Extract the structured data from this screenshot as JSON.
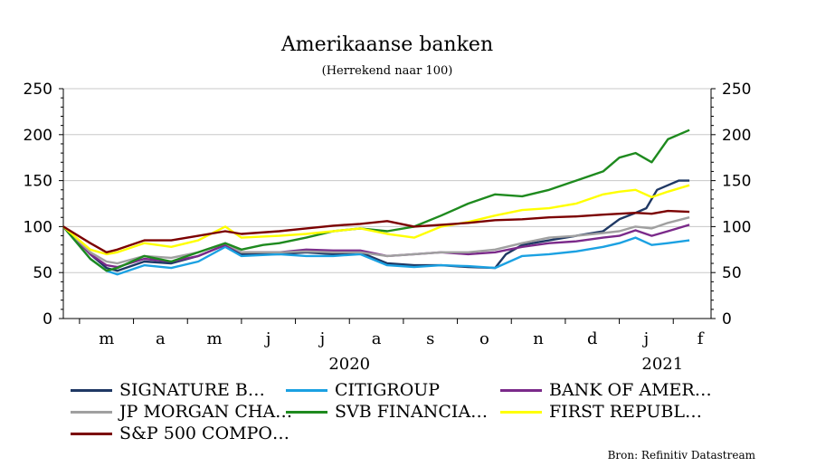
{
  "chart_data": {
    "type": "line",
    "title": "Amerikaanse banken",
    "subtitle": "(Herrekend naar 100)",
    "ylim": [
      0,
      250
    ],
    "yticks": [
      0,
      50,
      100,
      150,
      200,
      250
    ],
    "ytick_labels": [
      "0",
      "50",
      "100",
      "150",
      "200",
      "250"
    ],
    "xlim": [
      0,
      12
    ],
    "months": [
      "m",
      "a",
      "m",
      "j",
      "j",
      "a",
      "s",
      "o",
      "n",
      "d",
      "j",
      "f"
    ],
    "years": [
      "2020",
      "2021"
    ],
    "grid": true,
    "legend_position": "bottom",
    "source": "Bron: Refinitiv Datastream",
    "series": [
      {
        "name": "SIGNATURE B…",
        "color": "#1f3864",
        "x": [
          0,
          0.5,
          0.8,
          1.0,
          1.5,
          2.0,
          2.5,
          3.0,
          3.3,
          4.0,
          4.5,
          5.0,
          5.5,
          6.0,
          6.5,
          7.0,
          7.5,
          8.0,
          8.2,
          8.5,
          9.0,
          9.5,
          10.0,
          10.3,
          10.6,
          10.8,
          11.0,
          11.2,
          11.4,
          11.6
        ],
        "y": [
          100,
          70,
          55,
          52,
          62,
          60,
          68,
          80,
          70,
          70,
          72,
          70,
          72,
          60,
          58,
          58,
          56,
          55,
          70,
          80,
          85,
          90,
          95,
          108,
          115,
          120,
          140,
          145,
          150,
          150
        ]
      },
      {
        "name": "CITIGROUP",
        "color": "#1ba1e2",
        "x": [
          0,
          0.5,
          0.8,
          1.0,
          1.5,
          2.0,
          2.5,
          3.0,
          3.3,
          4.0,
          4.5,
          5.0,
          5.5,
          6.0,
          6.5,
          7.0,
          7.5,
          8.0,
          8.5,
          9.0,
          9.5,
          10.0,
          10.3,
          10.6,
          10.9,
          11.2,
          11.6
        ],
        "y": [
          100,
          65,
          52,
          48,
          58,
          55,
          62,
          78,
          68,
          70,
          68,
          68,
          70,
          58,
          56,
          58,
          57,
          55,
          68,
          70,
          73,
          78,
          82,
          88,
          80,
          82,
          85
        ]
      },
      {
        "name": "BANK OF AMER…",
        "color": "#7b2a8a",
        "x": [
          0,
          0.5,
          0.8,
          1.0,
          1.5,
          2.0,
          2.5,
          3.0,
          3.3,
          4.0,
          4.5,
          5.0,
          5.5,
          6.0,
          6.5,
          7.0,
          7.5,
          8.0,
          8.5,
          9.0,
          9.5,
          10.0,
          10.3,
          10.6,
          10.9,
          11.2,
          11.6
        ],
        "y": [
          100,
          70,
          58,
          56,
          65,
          62,
          68,
          80,
          72,
          72,
          75,
          74,
          74,
          68,
          70,
          72,
          70,
          72,
          78,
          82,
          84,
          88,
          90,
          96,
          90,
          95,
          102
        ]
      },
      {
        "name": "JP MORGAN CHA…",
        "color": "#a0a0a0",
        "x": [
          0,
          0.5,
          0.8,
          1.0,
          1.5,
          2.0,
          2.5,
          3.0,
          3.3,
          4.0,
          4.5,
          5.0,
          5.5,
          6.0,
          6.5,
          7.0,
          7.5,
          8.0,
          8.5,
          9.0,
          9.5,
          10.0,
          10.3,
          10.6,
          10.9,
          11.2,
          11.6
        ],
        "y": [
          100,
          72,
          62,
          60,
          68,
          66,
          72,
          82,
          72,
          72,
          73,
          72,
          72,
          68,
          70,
          72,
          72,
          75,
          82,
          88,
          90,
          93,
          95,
          100,
          98,
          104,
          110
        ]
      },
      {
        "name": "SVB FINANCIA…",
        "color": "#1e8a1e",
        "x": [
          0,
          0.5,
          0.8,
          1.0,
          1.5,
          2.0,
          2.5,
          3.0,
          3.3,
          3.7,
          4.0,
          4.5,
          5.0,
          5.5,
          6.0,
          6.5,
          7.0,
          7.5,
          8.0,
          8.5,
          9.0,
          9.5,
          10.0,
          10.3,
          10.6,
          10.9,
          11.2,
          11.6
        ],
        "y": [
          100,
          65,
          52,
          55,
          68,
          62,
          72,
          82,
          75,
          80,
          82,
          88,
          95,
          98,
          95,
          100,
          112,
          125,
          135,
          133,
          140,
          150,
          160,
          175,
          180,
          170,
          195,
          205
        ]
      },
      {
        "name": "FIRST REPUBL…",
        "color": "#ffff00",
        "x": [
          0,
          0.5,
          0.8,
          1.0,
          1.5,
          2.0,
          2.5,
          3.0,
          3.3,
          4.0,
          4.5,
          5.0,
          5.5,
          6.0,
          6.5,
          7.0,
          7.5,
          8.0,
          8.5,
          9.0,
          9.5,
          10.0,
          10.3,
          10.6,
          10.9,
          11.2,
          11.6
        ],
        "y": [
          100,
          75,
          70,
          72,
          82,
          78,
          85,
          100,
          88,
          90,
          92,
          95,
          98,
          92,
          88,
          100,
          105,
          112,
          118,
          120,
          125,
          135,
          138,
          140,
          132,
          138,
          145
        ]
      },
      {
        "name": "S&P 500 COMPO…",
        "color": "#7b0000",
        "x": [
          0,
          0.5,
          0.8,
          1.0,
          1.5,
          2.0,
          2.5,
          3.0,
          3.3,
          4.0,
          4.5,
          5.0,
          5.5,
          6.0,
          6.5,
          7.0,
          7.5,
          8.0,
          8.5,
          9.0,
          9.5,
          10.0,
          10.3,
          10.6,
          10.9,
          11.2,
          11.6
        ],
        "y": [
          100,
          82,
          72,
          75,
          85,
          85,
          90,
          95,
          92,
          95,
          98,
          101,
          103,
          106,
          100,
          102,
          104,
          107,
          108,
          110,
          111,
          113,
          114,
          115,
          114,
          117,
          116
        ]
      }
    ]
  }
}
